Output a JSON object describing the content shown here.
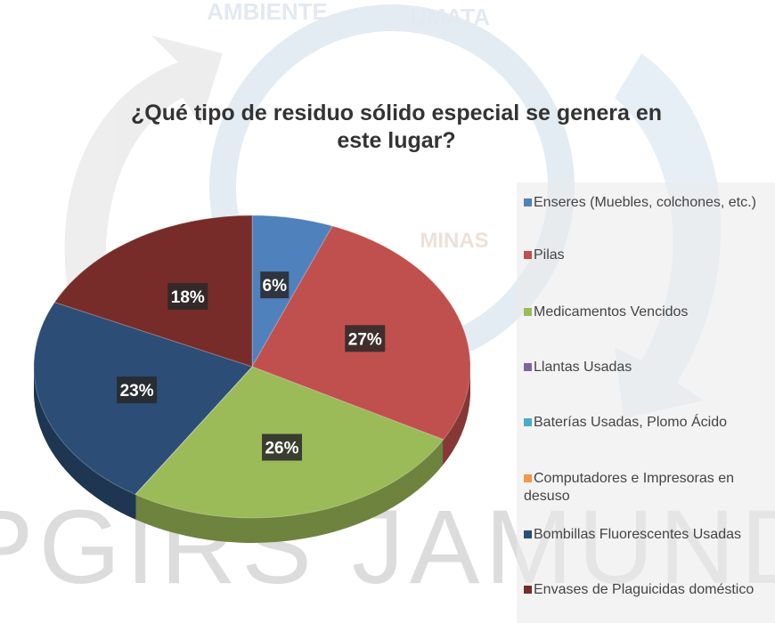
{
  "chart_data": {
    "type": "pie",
    "title": "¿Qué tipo de residuo sólido especial se genera en este lugar?",
    "watermark": [
      "AMBIENTE",
      "UMATA",
      "MINAS",
      "PGIRS JAMUNDI"
    ],
    "categories": [
      "Enseres (Muebles, colchones, etc.)",
      "Pilas",
      "Medicamentos Vencidos",
      "Llantas Usadas",
      "Baterías Usadas, Plomo Ácido",
      "Computadores e Impresoras en desuso",
      "Bombillas Fluorescentes Usadas",
      "Envases de Plaguicidas doméstico"
    ],
    "values": [
      6,
      27,
      26,
      0,
      0,
      0,
      23,
      18
    ],
    "value_labels": [
      "6%",
      "27%",
      "26%",
      null,
      null,
      null,
      "23%",
      "18%"
    ],
    "colors": [
      "#4f81bd",
      "#c0504d",
      "#9bbb59",
      "#8064a2",
      "#4bacc6",
      "#f79646",
      "#2c4d75",
      "#772c2a"
    ],
    "legend": "right"
  }
}
